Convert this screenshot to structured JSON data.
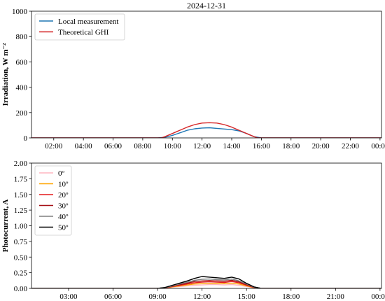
{
  "chart_data": [
    {
      "type": "line",
      "title": "2024-12-31",
      "ylabel": "Irradiation, W m⁻²",
      "xlabel": "",
      "ylim": [
        0,
        1000
      ],
      "xlim_hours": [
        0.5,
        24.1
      ],
      "x_tick_labels": [
        "02:00",
        "04:00",
        "06:00",
        "08:00",
        "10:00",
        "12:00",
        "14:00",
        "16:00",
        "18:00",
        "20:00",
        "22:00",
        "00:00"
      ],
      "y_tick_labels": [
        "0",
        "200",
        "400",
        "600",
        "800",
        "1000"
      ],
      "y_ticks": [
        0,
        200,
        400,
        600,
        800,
        1000
      ],
      "legend": {
        "placement": "top-left"
      },
      "grid": false,
      "series": [
        {
          "name": "Local measurement",
          "color": "#1f77b4",
          "x": [
            "00:30",
            "09:00",
            "09:30",
            "10:00",
            "10:30",
            "11:00",
            "11:30",
            "12:00",
            "12:30",
            "13:00",
            "13:30",
            "14:00",
            "14:30",
            "15:00",
            "15:30",
            "16:00",
            "24:05"
          ],
          "y": [
            0,
            0,
            5,
            20,
            40,
            60,
            72,
            78,
            80,
            75,
            70,
            65,
            55,
            35,
            10,
            0,
            0
          ]
        },
        {
          "name": "Theoretical GHI",
          "color": "#d62728",
          "x": [
            "00:30",
            "09:15",
            "09:30",
            "10:00",
            "10:30",
            "11:00",
            "11:30",
            "12:00",
            "12:30",
            "13:00",
            "13:30",
            "14:00",
            "14:30",
            "15:00",
            "15:30",
            "15:45",
            "24:05"
          ],
          "y": [
            0,
            0,
            10,
            35,
            60,
            85,
            105,
            117,
            120,
            117,
            105,
            85,
            60,
            35,
            10,
            0,
            0
          ]
        }
      ]
    },
    {
      "type": "line",
      "ylabel": "Photocurrent, A",
      "xlabel": "",
      "ylim": [
        0,
        2.0
      ],
      "xlim_hours": [
        0.5,
        24.1
      ],
      "x_tick_labels": [
        "03:00",
        "06:00",
        "09:00",
        "12:00",
        "15:00",
        "18:00",
        "21:00",
        "00:00"
      ],
      "y_tick_labels": [
        "0.00",
        "0.25",
        "0.50",
        "0.75",
        "1.00",
        "1.25",
        "1.50",
        "1.75",
        "2.00"
      ],
      "y_ticks": [
        0,
        0.25,
        0.5,
        0.75,
        1.0,
        1.25,
        1.5,
        1.75,
        2.0
      ],
      "legend": {
        "placement": "top-left"
      },
      "grid": false,
      "series": [
        {
          "name": "0º",
          "color": "#ffb6c1",
          "x": [
            "00:30",
            "09:00",
            "09:30",
            "10:00",
            "10:30",
            "11:00",
            "11:30",
            "12:00",
            "12:30",
            "13:00",
            "13:30",
            "14:00",
            "14:30",
            "15:00",
            "15:30",
            "16:00",
            "24:05"
          ],
          "y": [
            0,
            0,
            0.005,
            0.02,
            0.03,
            0.04,
            0.05,
            0.055,
            0.06,
            0.06,
            0.055,
            0.06,
            0.05,
            0.03,
            0.01,
            0,
            0
          ]
        },
        {
          "name": "10º",
          "color": "#ffa500",
          "x": [
            "00:30",
            "09:00",
            "09:30",
            "10:00",
            "10:30",
            "11:00",
            "11:30",
            "12:00",
            "12:30",
            "13:00",
            "13:30",
            "14:00",
            "14:30",
            "15:00",
            "15:30",
            "16:00",
            "24:05"
          ],
          "y": [
            0,
            0,
            0.006,
            0.025,
            0.04,
            0.055,
            0.07,
            0.075,
            0.08,
            0.08,
            0.075,
            0.085,
            0.07,
            0.04,
            0.012,
            0,
            0
          ]
        },
        {
          "name": "20º",
          "color": "#e31a1c",
          "x": [
            "00:30",
            "09:00",
            "09:30",
            "10:00",
            "10:30",
            "11:00",
            "11:30",
            "12:00",
            "12:30",
            "13:00",
            "13:30",
            "14:00",
            "14:30",
            "15:00",
            "15:30",
            "16:00",
            "24:05"
          ],
          "y": [
            0,
            0,
            0.008,
            0.03,
            0.05,
            0.07,
            0.09,
            0.1,
            0.105,
            0.1,
            0.095,
            0.11,
            0.09,
            0.05,
            0.015,
            0,
            0
          ]
        },
        {
          "name": "30º",
          "color": "#a50f15",
          "x": [
            "00:30",
            "09:00",
            "09:30",
            "10:00",
            "10:30",
            "11:00",
            "11:30",
            "12:00",
            "12:30",
            "13:00",
            "13:30",
            "14:00",
            "14:30",
            "15:00",
            "15:30",
            "16:00",
            "24:05"
          ],
          "y": [
            0,
            0,
            0.01,
            0.035,
            0.06,
            0.085,
            0.11,
            0.12,
            0.125,
            0.12,
            0.115,
            0.13,
            0.105,
            0.06,
            0.018,
            0,
            0
          ]
        },
        {
          "name": "40º",
          "color": "#7f7f7f",
          "x": [
            "00:30",
            "09:00",
            "09:30",
            "10:00",
            "10:30",
            "11:00",
            "11:30",
            "12:00",
            "12:30",
            "13:00",
            "13:30",
            "14:00",
            "14:30",
            "15:00",
            "15:30",
            "16:00",
            "24:05"
          ],
          "y": [
            0,
            0,
            0.012,
            0.04,
            0.07,
            0.1,
            0.13,
            0.145,
            0.15,
            0.14,
            0.135,
            0.15,
            0.12,
            0.07,
            0.02,
            0,
            0
          ]
        },
        {
          "name": "50º",
          "color": "#000000",
          "x": [
            "00:30",
            "09:00",
            "09:30",
            "10:00",
            "10:30",
            "11:00",
            "11:30",
            "12:00",
            "12:30",
            "13:00",
            "13:30",
            "14:00",
            "14:30",
            "15:00",
            "15:30",
            "16:00",
            "24:05"
          ],
          "y": [
            0,
            0,
            0.015,
            0.05,
            0.085,
            0.12,
            0.16,
            0.19,
            0.18,
            0.17,
            0.16,
            0.18,
            0.15,
            0.08,
            0.025,
            0,
            0
          ]
        }
      ]
    }
  ]
}
